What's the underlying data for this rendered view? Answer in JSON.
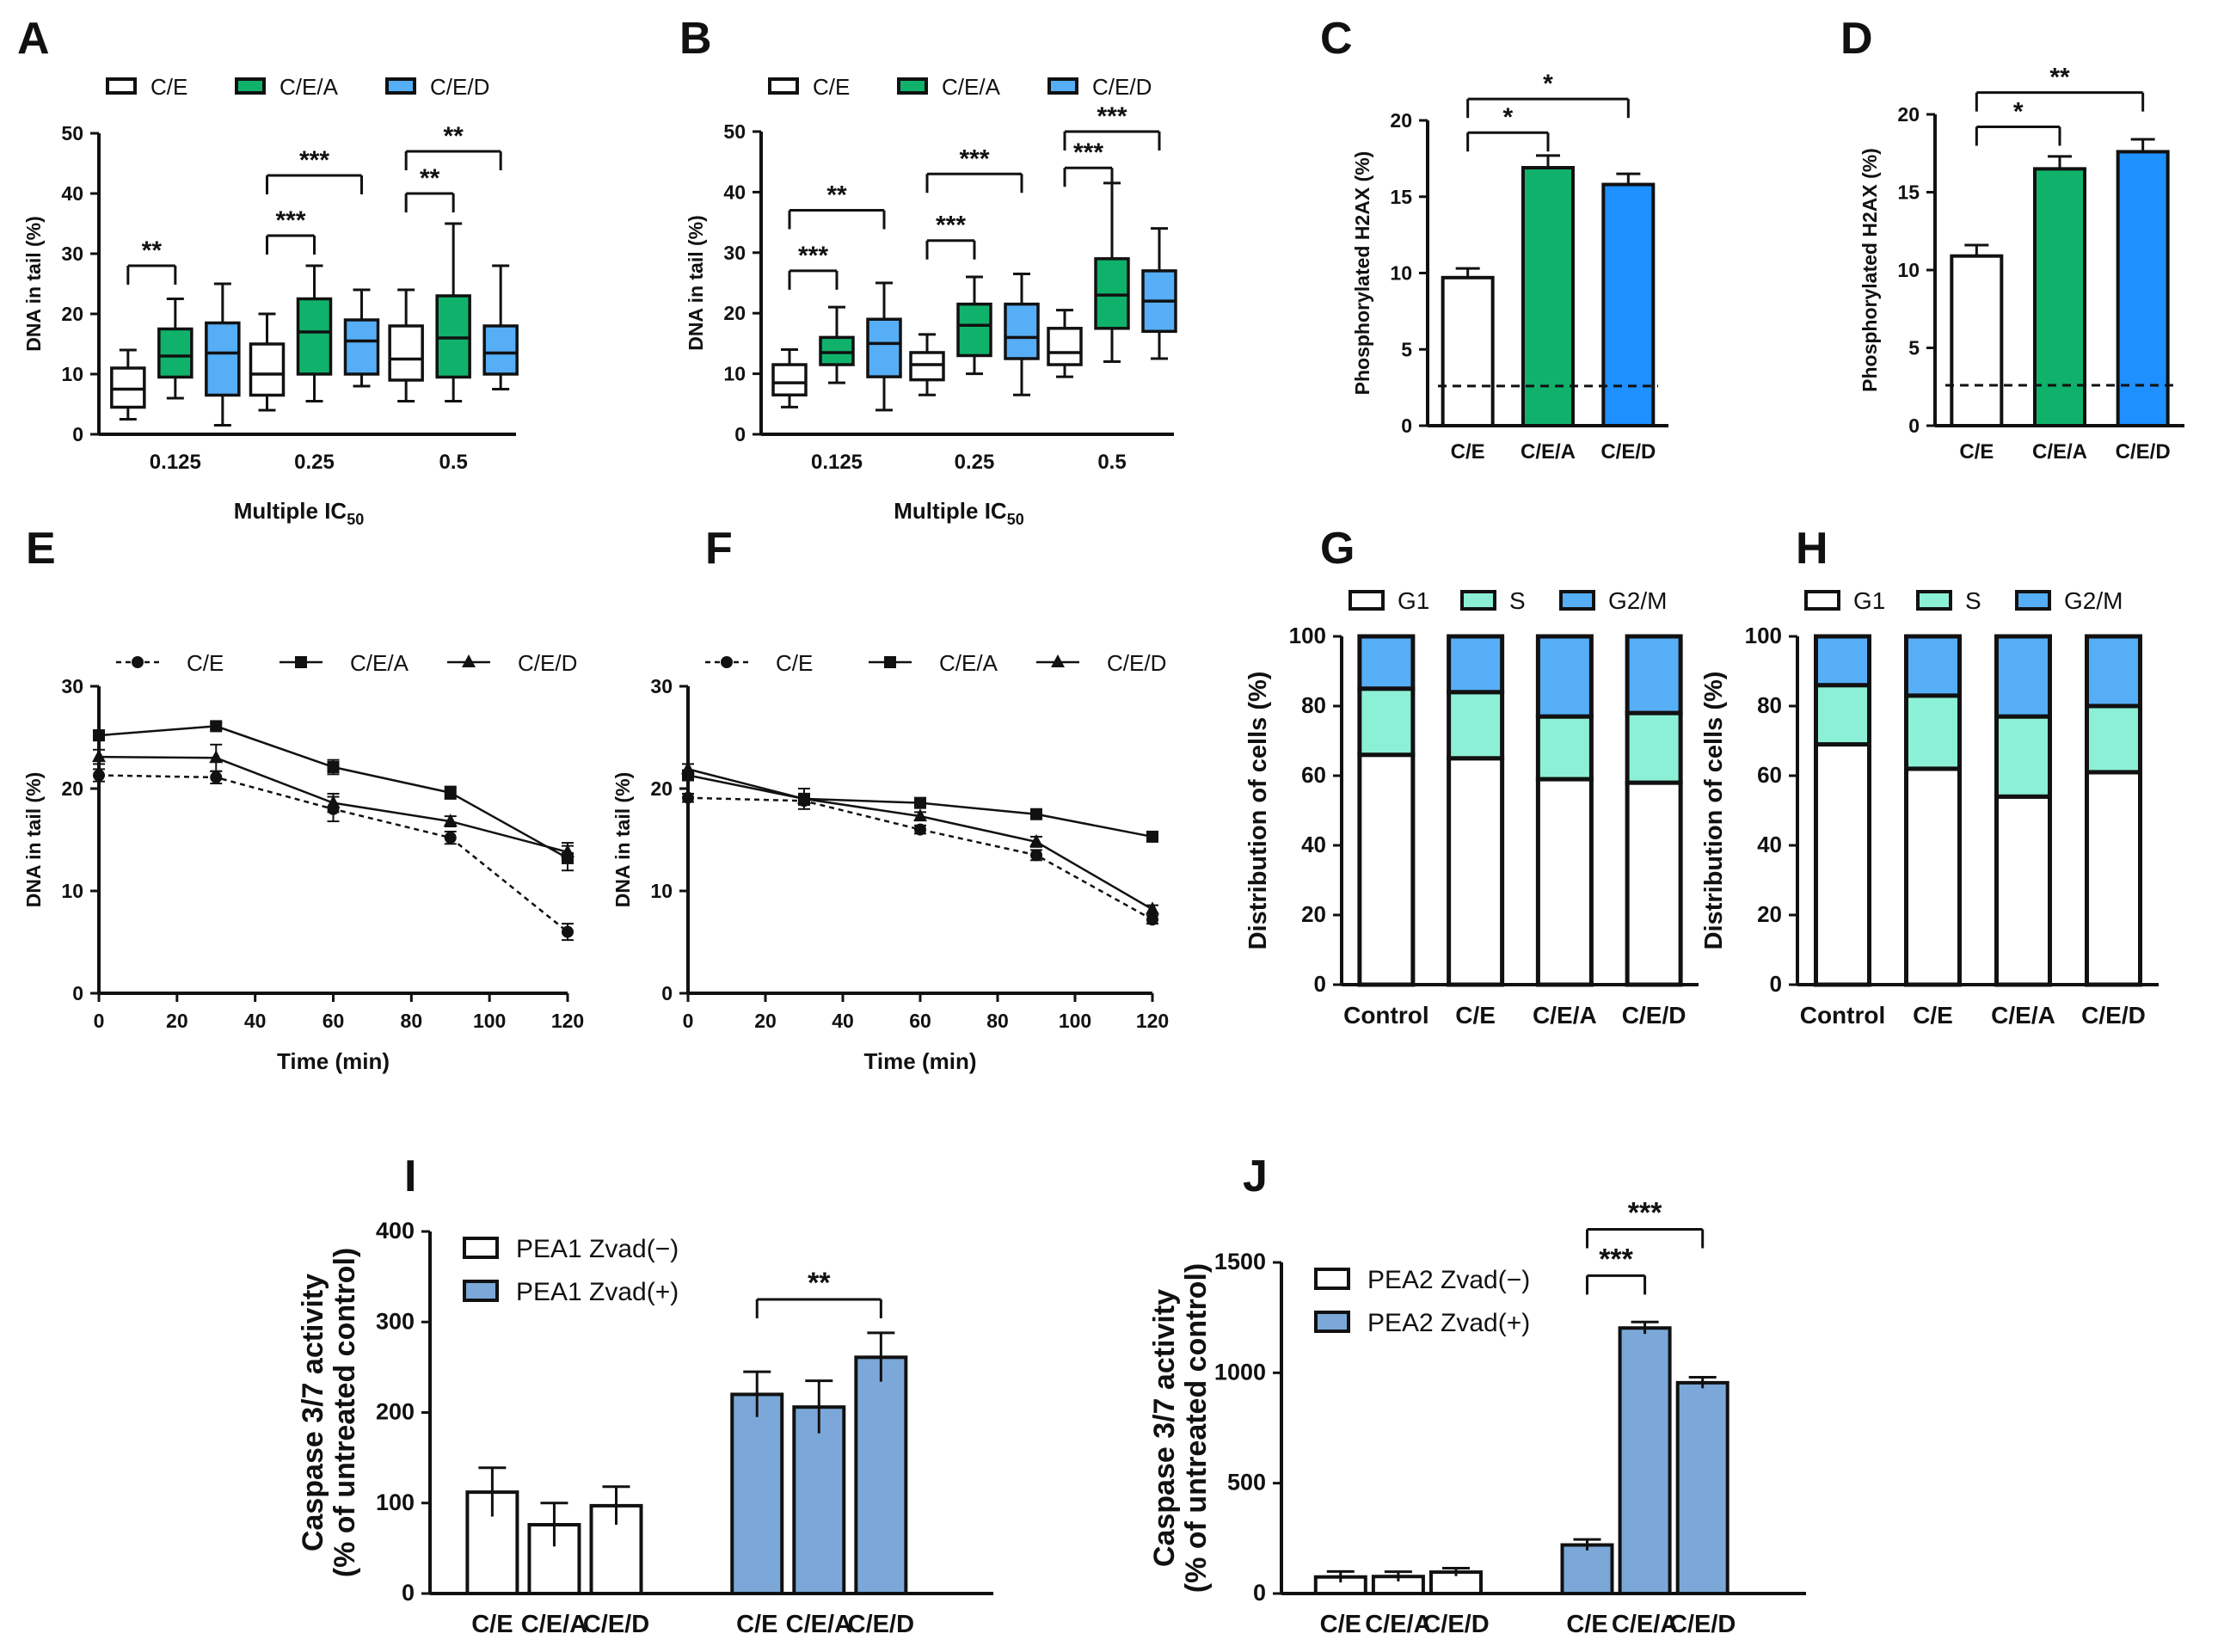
{
  "colors": {
    "white": "#ffffff",
    "green": "#10b26b",
    "blue": "#56aef7",
    "brightblue": "#1e90ff",
    "aqua": "#8cf0d7",
    "steel": "#7ba8d8",
    "black": "#111111"
  },
  "chart_data": [
    {
      "id": "A",
      "letter": "A",
      "type": "box",
      "legend": [
        "C/E",
        "C/E/A",
        "C/E/D"
      ],
      "categories": [
        "0.125",
        "0.25",
        "0.5"
      ],
      "xlabel": "Multiple IC",
      "xlabel_sub": "50",
      "ylabel": "DNA in tail (%)",
      "ylim": [
        0,
        50
      ],
      "yticks": [
        0,
        10,
        20,
        30,
        40,
        50
      ],
      "boxes": [
        [
          [
            2.5,
            4.5,
            7.5,
            11,
            14
          ],
          [
            6,
            9.5,
            13,
            17.5,
            22.5
          ],
          [
            1.5,
            6.5,
            13.5,
            18.5,
            25
          ]
        ],
        [
          [
            4,
            6.5,
            10,
            15,
            20
          ],
          [
            5.5,
            10,
            17,
            22.5,
            28
          ],
          [
            8,
            10,
            15.5,
            19,
            24
          ]
        ],
        [
          [
            5.5,
            9,
            12.5,
            18,
            24
          ],
          [
            5.5,
            9.5,
            16,
            23,
            35
          ],
          [
            7.5,
            10,
            13.5,
            18,
            28
          ]
        ]
      ],
      "sig": [
        {
          "from": [
            0,
            0
          ],
          "to": [
            0,
            1
          ],
          "y": 28,
          "label": "**"
        },
        {
          "from": [
            1,
            0
          ],
          "to": [
            1,
            1
          ],
          "y": 33,
          "label": "***"
        },
        {
          "from": [
            1,
            0
          ],
          "to": [
            1,
            2
          ],
          "y": 43,
          "label": "***"
        },
        {
          "from": [
            2,
            0
          ],
          "to": [
            2,
            1
          ],
          "y": 40,
          "label": "**"
        },
        {
          "from": [
            2,
            0
          ],
          "to": [
            2,
            2
          ],
          "y": 47,
          "label": "**"
        }
      ]
    },
    {
      "id": "B",
      "letter": "B",
      "type": "box",
      "legend": [
        "C/E",
        "C/E/A",
        "C/E/D"
      ],
      "categories": [
        "0.125",
        "0.25",
        "0.5"
      ],
      "xlabel": "Multiple IC",
      "xlabel_sub": "50",
      "ylabel": "DNA in tail (%)",
      "ylim": [
        0,
        50
      ],
      "yticks": [
        0,
        10,
        20,
        30,
        40,
        50
      ],
      "boxes": [
        [
          [
            4.5,
            6.5,
            8.5,
            11.5,
            14
          ],
          [
            8.5,
            11.5,
            13.5,
            16,
            21
          ],
          [
            4,
            9.5,
            15,
            19,
            25
          ]
        ],
        [
          [
            6.5,
            9,
            11.5,
            13.5,
            16.5
          ],
          [
            10,
            13,
            18,
            21.5,
            26
          ],
          [
            6.5,
            12.5,
            16,
            21.5,
            26.5
          ]
        ],
        [
          [
            9.5,
            11.5,
            13.5,
            17.5,
            20.5
          ],
          [
            12,
            17.5,
            23,
            29,
            41.5
          ],
          [
            12.5,
            17,
            22,
            27,
            34
          ]
        ]
      ],
      "sig": [
        {
          "from": [
            0,
            0
          ],
          "to": [
            0,
            1
          ],
          "y": 27,
          "label": "***"
        },
        {
          "from": [
            0,
            0
          ],
          "to": [
            0,
            2
          ],
          "y": 37,
          "label": "**"
        },
        {
          "from": [
            1,
            0
          ],
          "to": [
            1,
            1
          ],
          "y": 32,
          "label": "***"
        },
        {
          "from": [
            1,
            0
          ],
          "to": [
            1,
            2
          ],
          "y": 43,
          "label": "***"
        },
        {
          "from": [
            2,
            0
          ],
          "to": [
            2,
            1
          ],
          "y": 44,
          "label": "***"
        },
        {
          "from": [
            2,
            0
          ],
          "to": [
            2,
            2
          ],
          "y": 50,
          "label": "***"
        }
      ]
    },
    {
      "id": "C",
      "letter": "C",
      "type": "bar",
      "categories": [
        "C/E",
        "C/E/A",
        "C/E/D"
      ],
      "values": [
        9.7,
        16.9,
        15.8
      ],
      "errors": [
        0.6,
        0.8,
        0.7
      ],
      "colors": [
        "white",
        "green",
        "brightblue"
      ],
      "ylabel": "Phosphorylated H2AX (%)",
      "ylim": [
        0,
        20
      ],
      "yticks": [
        0,
        5,
        10,
        15,
        20
      ],
      "baseline": 2.6,
      "sig": [
        {
          "from": 0,
          "to": 1,
          "y": 19.2,
          "label": "*"
        },
        {
          "from": 0,
          "to": 2,
          "y": 21.4,
          "label": "*"
        }
      ]
    },
    {
      "id": "D",
      "letter": "D",
      "type": "bar",
      "categories": [
        "C/E",
        "C/E/A",
        "C/E/D"
      ],
      "values": [
        10.9,
        16.5,
        17.6
      ],
      "errors": [
        0.7,
        0.8,
        0.8
      ],
      "colors": [
        "white",
        "green",
        "brightblue"
      ],
      "ylabel": "Phosphorylated H2AX (%)",
      "ylim": [
        0,
        20
      ],
      "yticks": [
        0,
        5,
        10,
        15,
        20
      ],
      "baseline": 2.6,
      "sig": [
        {
          "from": 0,
          "to": 1,
          "y": 19.2,
          "label": "*"
        },
        {
          "from": 0,
          "to": 2,
          "y": 21.4,
          "label": "**"
        }
      ]
    },
    {
      "id": "E",
      "letter": "E",
      "type": "line",
      "x": [
        0,
        30,
        60,
        90,
        120
      ],
      "xlim": [
        0,
        120
      ],
      "xticks": [
        0,
        20,
        40,
        60,
        80,
        100,
        120
      ],
      "xlabel": "Time (min)",
      "ylabel": "DNA in tail (%)",
      "ylim": [
        0,
        30
      ],
      "yticks": [
        0,
        10,
        20,
        30
      ],
      "series": [
        {
          "name": "C/E",
          "marker": "circle",
          "dash": true,
          "values": [
            21.3,
            21.1,
            18.0,
            15.2,
            6.0
          ],
          "errors": [
            0.6,
            0.6,
            1.2,
            0.6,
            0.8
          ]
        },
        {
          "name": "C/E/A",
          "marker": "square",
          "dash": false,
          "values": [
            25.2,
            26.1,
            22.1,
            19.6,
            13.2
          ],
          "errors": [
            0.5,
            0.3,
            0.7,
            0.6,
            1.2
          ]
        },
        {
          "name": "C/E/D",
          "marker": "triangle",
          "dash": false,
          "values": [
            23.1,
            23.0,
            18.6,
            16.8,
            13.8
          ],
          "errors": [
            0.7,
            1.3,
            0.9,
            0.5,
            0.9
          ]
        }
      ]
    },
    {
      "id": "F",
      "letter": "F",
      "type": "line",
      "x": [
        0,
        30,
        60,
        90,
        120
      ],
      "xlim": [
        0,
        120
      ],
      "xticks": [
        0,
        20,
        40,
        60,
        80,
        100,
        120
      ],
      "xlabel": "Time (min)",
      "ylabel": "DNA in tail (%)",
      "ylim": [
        0,
        30
      ],
      "yticks": [
        0,
        10,
        20,
        30
      ],
      "series": [
        {
          "name": "C/E",
          "marker": "circle",
          "dash": true,
          "values": [
            19.1,
            18.8,
            16.0,
            13.5,
            7.2
          ],
          "errors": [
            0.4,
            0.4,
            0.4,
            0.5,
            0.4
          ]
        },
        {
          "name": "C/E/A",
          "marker": "square",
          "dash": false,
          "values": [
            21.3,
            19.0,
            18.6,
            17.5,
            15.3
          ],
          "errors": [
            0.4,
            0.5,
            0.4,
            0.4,
            0.4
          ]
        },
        {
          "name": "C/E/D",
          "marker": "triangle",
          "dash": false,
          "values": [
            21.9,
            19.0,
            17.3,
            14.8,
            8.2
          ],
          "errors": [
            0.5,
            1.0,
            0.4,
            0.5,
            0.4
          ]
        }
      ]
    },
    {
      "id": "G",
      "letter": "G",
      "type": "stacked",
      "categories": [
        "Control",
        "C/E",
        "C/E/A",
        "C/E/D"
      ],
      "legend": [
        "G1",
        "S",
        "G2/M"
      ],
      "legend_colors": [
        "white",
        "aqua",
        "blue"
      ],
      "ylabel": "Distribution of cells (%)",
      "ylim": [
        0,
        100
      ],
      "yticks": [
        0,
        20,
        40,
        60,
        80,
        100
      ],
      "stacks": [
        [
          66,
          19,
          15
        ],
        [
          65,
          19,
          16
        ],
        [
          59,
          18,
          23
        ],
        [
          58,
          20,
          22
        ]
      ]
    },
    {
      "id": "H",
      "letter": "H",
      "type": "stacked",
      "categories": [
        "Control",
        "C/E",
        "C/E/A",
        "C/E/D"
      ],
      "legend": [
        "G1",
        "S",
        "G2/M"
      ],
      "legend_colors": [
        "white",
        "aqua",
        "blue"
      ],
      "ylabel": "Distribution of cells (%)",
      "ylim": [
        0,
        100
      ],
      "yticks": [
        0,
        20,
        40,
        60,
        80,
        100
      ],
      "stacks": [
        [
          69,
          17,
          14
        ],
        [
          62,
          21,
          17
        ],
        [
          54,
          23,
          23
        ],
        [
          61,
          19,
          20
        ]
      ]
    },
    {
      "id": "I",
      "letter": "I",
      "type": "groupbar",
      "legend": [
        "PEA1 Zvad(−)",
        "PEA1 Zvad(+)"
      ],
      "categories": [
        "C/E",
        "C/E/A",
        "C/E/D",
        "C/E",
        "C/E/A",
        "C/E/D"
      ],
      "values": [
        112,
        76,
        97,
        220,
        206,
        261
      ],
      "errors": [
        27,
        24,
        21,
        25,
        29,
        27
      ],
      "ylabel": "Caspase 3/7 activity",
      "ylabel2": "(% of untreated control)",
      "ylim": [
        0,
        400
      ],
      "yticks": [
        0,
        100,
        200,
        300,
        400
      ],
      "sig": [
        {
          "from": 3,
          "to": 5,
          "y": 325,
          "label": "**"
        }
      ]
    },
    {
      "id": "J",
      "letter": "J",
      "type": "groupbar",
      "legend": [
        "PEA2 Zvad(−)",
        "PEA2 Zvad(+)"
      ],
      "categories": [
        "C/E",
        "C/E/A",
        "C/E/D",
        "C/E",
        "C/E/A",
        "C/E/D"
      ],
      "values": [
        75,
        77,
        97,
        220,
        1203,
        955
      ],
      "errors": [
        25,
        22,
        18,
        25,
        27,
        25
      ],
      "ylabel": "Caspase 3/7 activity",
      "ylabel2": "(% of untreated control)",
      "ylim": [
        0,
        1500
      ],
      "yticks": [
        0,
        500,
        1000,
        1500
      ],
      "sig": [
        {
          "from": 3,
          "to": 4,
          "y": 1440,
          "label": "***"
        },
        {
          "from": 3,
          "to": 5,
          "y": 1650,
          "label": "***"
        }
      ]
    }
  ]
}
